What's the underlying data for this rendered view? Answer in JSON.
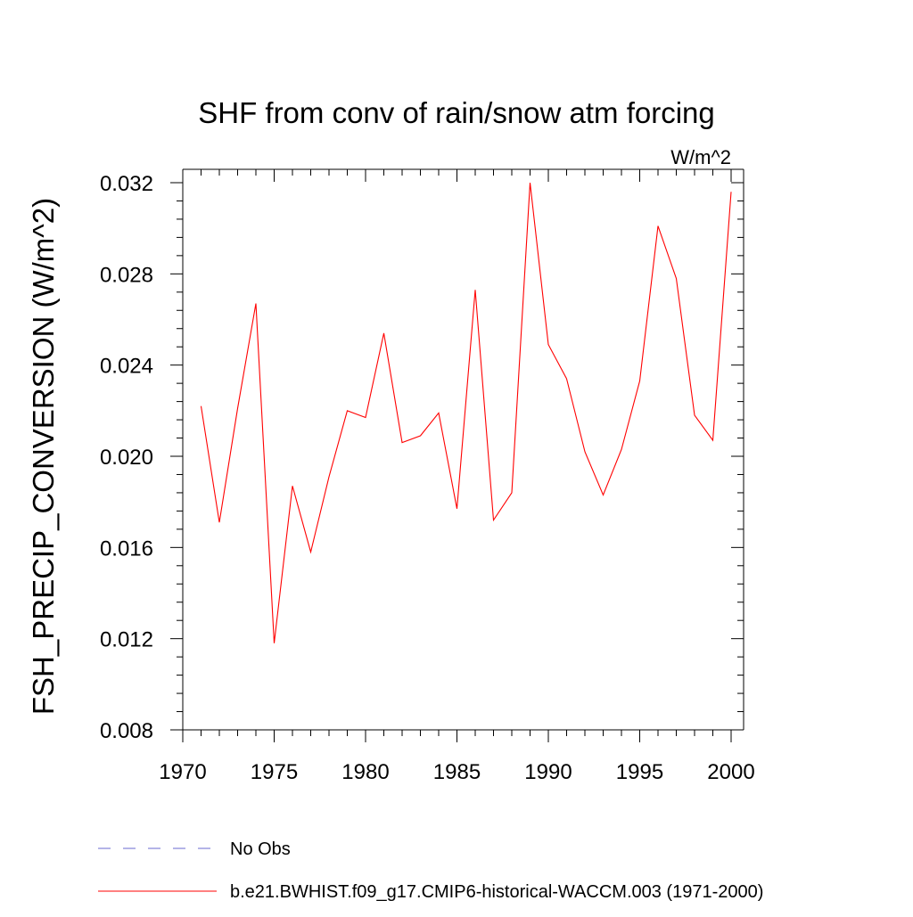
{
  "chart_data": {
    "type": "line",
    "title": "SHF from conv of rain/snow atm forcing",
    "units_label": "W/m^2",
    "ylabel": "FSH_PRECIP_CONVERSION  (W/m^2)",
    "xlabel": "",
    "xlim": [
      1970,
      2000
    ],
    "ylim": [
      0.008,
      0.032
    ],
    "x_ticks": [
      1970,
      1975,
      1980,
      1985,
      1990,
      1995,
      2000
    ],
    "x_tick_labels": [
      "1970",
      "1975",
      "1980",
      "1985",
      "1990",
      "1995",
      "2000"
    ],
    "y_ticks": [
      0.008,
      0.012,
      0.016,
      0.02,
      0.024,
      0.028,
      0.032
    ],
    "y_tick_labels": [
      "0.008",
      "0.012",
      "0.016",
      "0.020",
      "0.024",
      "0.028",
      "0.032"
    ],
    "series": [
      {
        "name": "b.e21.BWHIST.f09_g17.CMIP6-historical-WACCM.003 (1971-2000)",
        "color": "#ff0000",
        "style": "solid",
        "x": [
          1971,
          1972,
          1973,
          1974,
          1975,
          1976,
          1977,
          1978,
          1979,
          1980,
          1981,
          1982,
          1983,
          1984,
          1985,
          1986,
          1987,
          1988,
          1989,
          1990,
          1991,
          1992,
          1993,
          1994,
          1995,
          1996,
          1997,
          1998,
          1999,
          2000
        ],
        "values": [
          0.0222,
          0.0171,
          0.0221,
          0.0267,
          0.0118,
          0.0187,
          0.0158,
          0.0191,
          0.022,
          0.0217,
          0.0254,
          0.0206,
          0.0209,
          0.0219,
          0.0177,
          0.0273,
          0.0172,
          0.0184,
          0.032,
          0.0249,
          0.0234,
          0.0202,
          0.0183,
          0.0203,
          0.0233,
          0.0301,
          0.0278,
          0.0218,
          0.0207,
          0.0316
        ]
      }
    ],
    "legend": [
      {
        "label": "No Obs",
        "color": "#6a6ad0",
        "style": "dashed"
      },
      {
        "label": "b.e21.BWHIST.f09_g17.CMIP6-historical-WACCM.003 (1971-2000)",
        "color": "#ff0000",
        "style": "solid"
      }
    ],
    "legend_position": "bottom-left",
    "grid": false
  }
}
